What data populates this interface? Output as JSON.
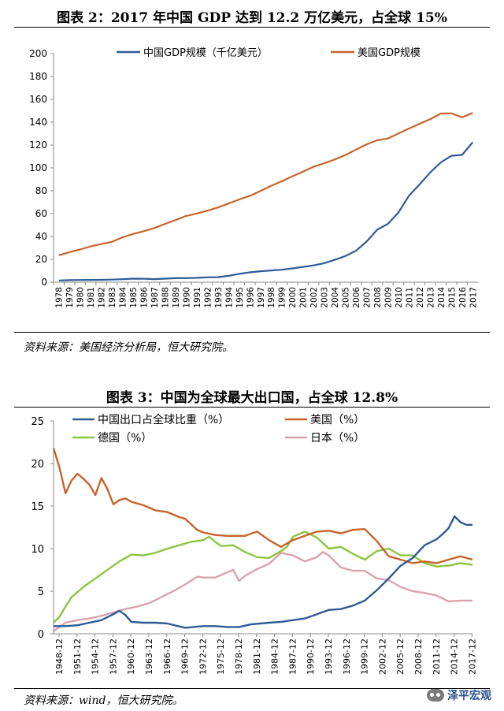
{
  "chart1": {
    "title": "图表 2：2017 年中国 GDP 达到 12.2 万亿美元，占全球 15%",
    "source": "资料来源：美国经济分析局，恒大研究院。",
    "chart_data": {
      "type": "line",
      "x": [
        "1978",
        "1979",
        "1980",
        "1981",
        "1982",
        "1983",
        "1984",
        "1985",
        "1986",
        "1987",
        "1988",
        "1989",
        "1990",
        "1991",
        "1992",
        "1993",
        "1994",
        "1995",
        "1996",
        "1997",
        "1998",
        "1999",
        "2000",
        "2001",
        "2002",
        "2003",
        "2004",
        "2005",
        "2006",
        "2007",
        "2008",
        "2009",
        "2010",
        "2011",
        "2012",
        "2013",
        "2014",
        "2015",
        "2016",
        "2017"
      ],
      "ylim": [
        0,
        200
      ],
      "yticks": [
        0,
        20,
        40,
        60,
        80,
        100,
        120,
        140,
        160,
        180,
        200
      ],
      "legend_position": "top",
      "series": [
        {
          "name": "中国GDP规模（千亿美元）",
          "color": "#2e5b96",
          "values": [
            1.5,
            1.8,
            1.9,
            2.0,
            2.1,
            2.3,
            2.6,
            3.1,
            3.0,
            2.7,
            3.1,
            3.5,
            3.6,
            3.8,
            4.3,
            4.4,
            5.6,
            7.3,
            8.6,
            9.6,
            10.3,
            10.9,
            12.1,
            13.4,
            14.7,
            16.6,
            19.6,
            22.9,
            27.5,
            35.5,
            45.9,
            51.0,
            61.0,
            75.7,
            85.6,
            96.1,
            104.8,
            110.6,
            111.4,
            122.4
          ]
        },
        {
          "name": "美国GDP规模",
          "color": "#c8632b",
          "values": [
            23.6,
            26.3,
            28.6,
            31.3,
            33.4,
            35.3,
            39.3,
            42.2,
            44.6,
            47.4,
            51.0,
            54.4,
            58.0,
            60.1,
            62.6,
            65.4,
            68.8,
            72.4,
            75.5,
            79.8,
            84.3,
            88.3,
            92.6,
            96.7,
            101.0,
            104.0,
            107.4,
            111.3,
            116.0,
            120.6,
            124.2,
            125.7,
            130.1,
            134.5,
            138.6,
            142.7,
            147.6,
            147.7,
            144.2,
            148.1
          ]
        }
      ]
    }
  },
  "chart2": {
    "title": "图表 3：中国为全球最大出口国，占全球 12.8%",
    "source": "资料来源：wind，恒大研究院。",
    "chart_data": {
      "type": "line",
      "x_start": 1948,
      "x_end": 2018,
      "xticks": [
        "1948-12",
        "1951-12",
        "1954-12",
        "1957-12",
        "1960-12",
        "1963-12",
        "1966-12",
        "1969-12",
        "1972-12",
        "1975-12",
        "1978-12",
        "1981-12",
        "1984-12",
        "1987-12",
        "1990-12",
        "1993-12",
        "1996-12",
        "1999-12",
        "2002-12",
        "2005-12",
        "2008-12",
        "2011-12",
        "2014-12",
        "2017-12"
      ],
      "ylim": [
        0,
        25
      ],
      "yticks": [
        0,
        5,
        10,
        15,
        20,
        25
      ],
      "legend_position": "top",
      "series": [
        {
          "name": "中国出口占全球比重（%）",
          "color": "#2e5b96",
          "x": [
            1948,
            1950,
            1952,
            1954,
            1956,
            1958,
            1959,
            1960,
            1961,
            1963,
            1965,
            1967,
            1970,
            1973,
            1975,
            1977,
            1979,
            1981,
            1984,
            1986,
            1988,
            1990,
            1992,
            1994,
            1996,
            1998,
            2000,
            2002,
            2004,
            2006,
            2008,
            2010,
            2012,
            2013,
            2014,
            2015,
            2016,
            2017,
            2018
          ],
          "values": [
            0.9,
            0.9,
            1.0,
            1.3,
            1.6,
            2.3,
            2.7,
            2.2,
            1.4,
            1.3,
            1.3,
            1.2,
            0.7,
            0.9,
            0.9,
            0.8,
            0.8,
            1.1,
            1.3,
            1.4,
            1.6,
            1.8,
            2.3,
            2.8,
            2.9,
            3.3,
            3.9,
            5.1,
            6.5,
            8.0,
            8.9,
            10.4,
            11.1,
            11.7,
            12.4,
            13.8,
            13.1,
            12.8,
            12.8
          ]
        },
        {
          "name": "美国（%）",
          "color": "#c8632b",
          "x": [
            1948,
            1949,
            1950,
            1951,
            1952,
            1953,
            1954,
            1955,
            1956,
            1957,
            1958,
            1959,
            1960,
            1961,
            1963,
            1965,
            1967,
            1969,
            1970,
            1972,
            1973,
            1975,
            1977,
            1978,
            1980,
            1982,
            1984,
            1986,
            1988,
            1990,
            1992,
            1994,
            1996,
            1998,
            2000,
            2002,
            2004,
            2006,
            2008,
            2010,
            2012,
            2014,
            2016,
            2018
          ],
          "values": [
            21.8,
            19.5,
            16.5,
            18.0,
            18.8,
            18.2,
            17.5,
            16.3,
            18.3,
            17.0,
            15.2,
            15.7,
            15.9,
            15.5,
            15.1,
            14.5,
            14.3,
            13.7,
            13.5,
            12.2,
            11.9,
            11.6,
            11.5,
            11.5,
            11.5,
            12.0,
            11.0,
            10.2,
            11.0,
            11.5,
            12.0,
            12.1,
            11.8,
            12.2,
            12.3,
            10.9,
            9.1,
            8.7,
            8.3,
            8.5,
            8.3,
            8.7,
            9.1,
            8.7
          ]
        },
        {
          "name": "德国（%）",
          "color": "#8cc540",
          "x": [
            1948,
            1949,
            1950,
            1951,
            1953,
            1955,
            1957,
            1959,
            1961,
            1963,
            1965,
            1967,
            1969,
            1971,
            1973,
            1974,
            1975,
            1976,
            1978,
            1980,
            1982,
            1984,
            1986,
            1987,
            1988,
            1990,
            1992,
            1994,
            1996,
            1998,
            2000,
            2002,
            2004,
            2006,
            2008,
            2010,
            2012,
            2014,
            2016,
            2018
          ],
          "values": [
            1.3,
            2.0,
            3.2,
            4.3,
            5.5,
            6.5,
            7.5,
            8.5,
            9.3,
            9.2,
            9.5,
            10.0,
            10.4,
            10.8,
            11.0,
            11.4,
            10.8,
            10.3,
            10.4,
            9.6,
            9.0,
            8.9,
            9.7,
            10.2,
            11.4,
            12.0,
            11.3,
            10.0,
            10.2,
            9.4,
            8.7,
            9.7,
            10.0,
            9.2,
            9.2,
            8.3,
            7.9,
            8.0,
            8.3,
            8.1
          ]
        },
        {
          "name": "日本（%）",
          "color": "#d9a3ad",
          "x": [
            1948,
            1950,
            1952,
            1954,
            1956,
            1958,
            1960,
            1962,
            1964,
            1966,
            1968,
            1970,
            1972,
            1973,
            1975,
            1977,
            1978,
            1979,
            1980,
            1982,
            1984,
            1986,
            1988,
            1990,
            1992,
            1993,
            1994,
            1996,
            1998,
            2000,
            2002,
            2004,
            2006,
            2008,
            2010,
            2012,
            2014,
            2016,
            2018
          ],
          "values": [
            0.3,
            1.3,
            1.6,
            1.8,
            2.1,
            2.5,
            2.9,
            3.2,
            3.6,
            4.3,
            5.0,
            5.8,
            6.7,
            6.6,
            6.6,
            7.2,
            7.5,
            6.2,
            6.8,
            7.6,
            8.2,
            9.5,
            9.2,
            8.5,
            9.0,
            9.6,
            9.2,
            7.8,
            7.4,
            7.4,
            6.5,
            6.3,
            5.5,
            5.0,
            4.8,
            4.5,
            3.8,
            3.9,
            3.9
          ]
        }
      ]
    }
  },
  "watermark": "泽平宏观"
}
